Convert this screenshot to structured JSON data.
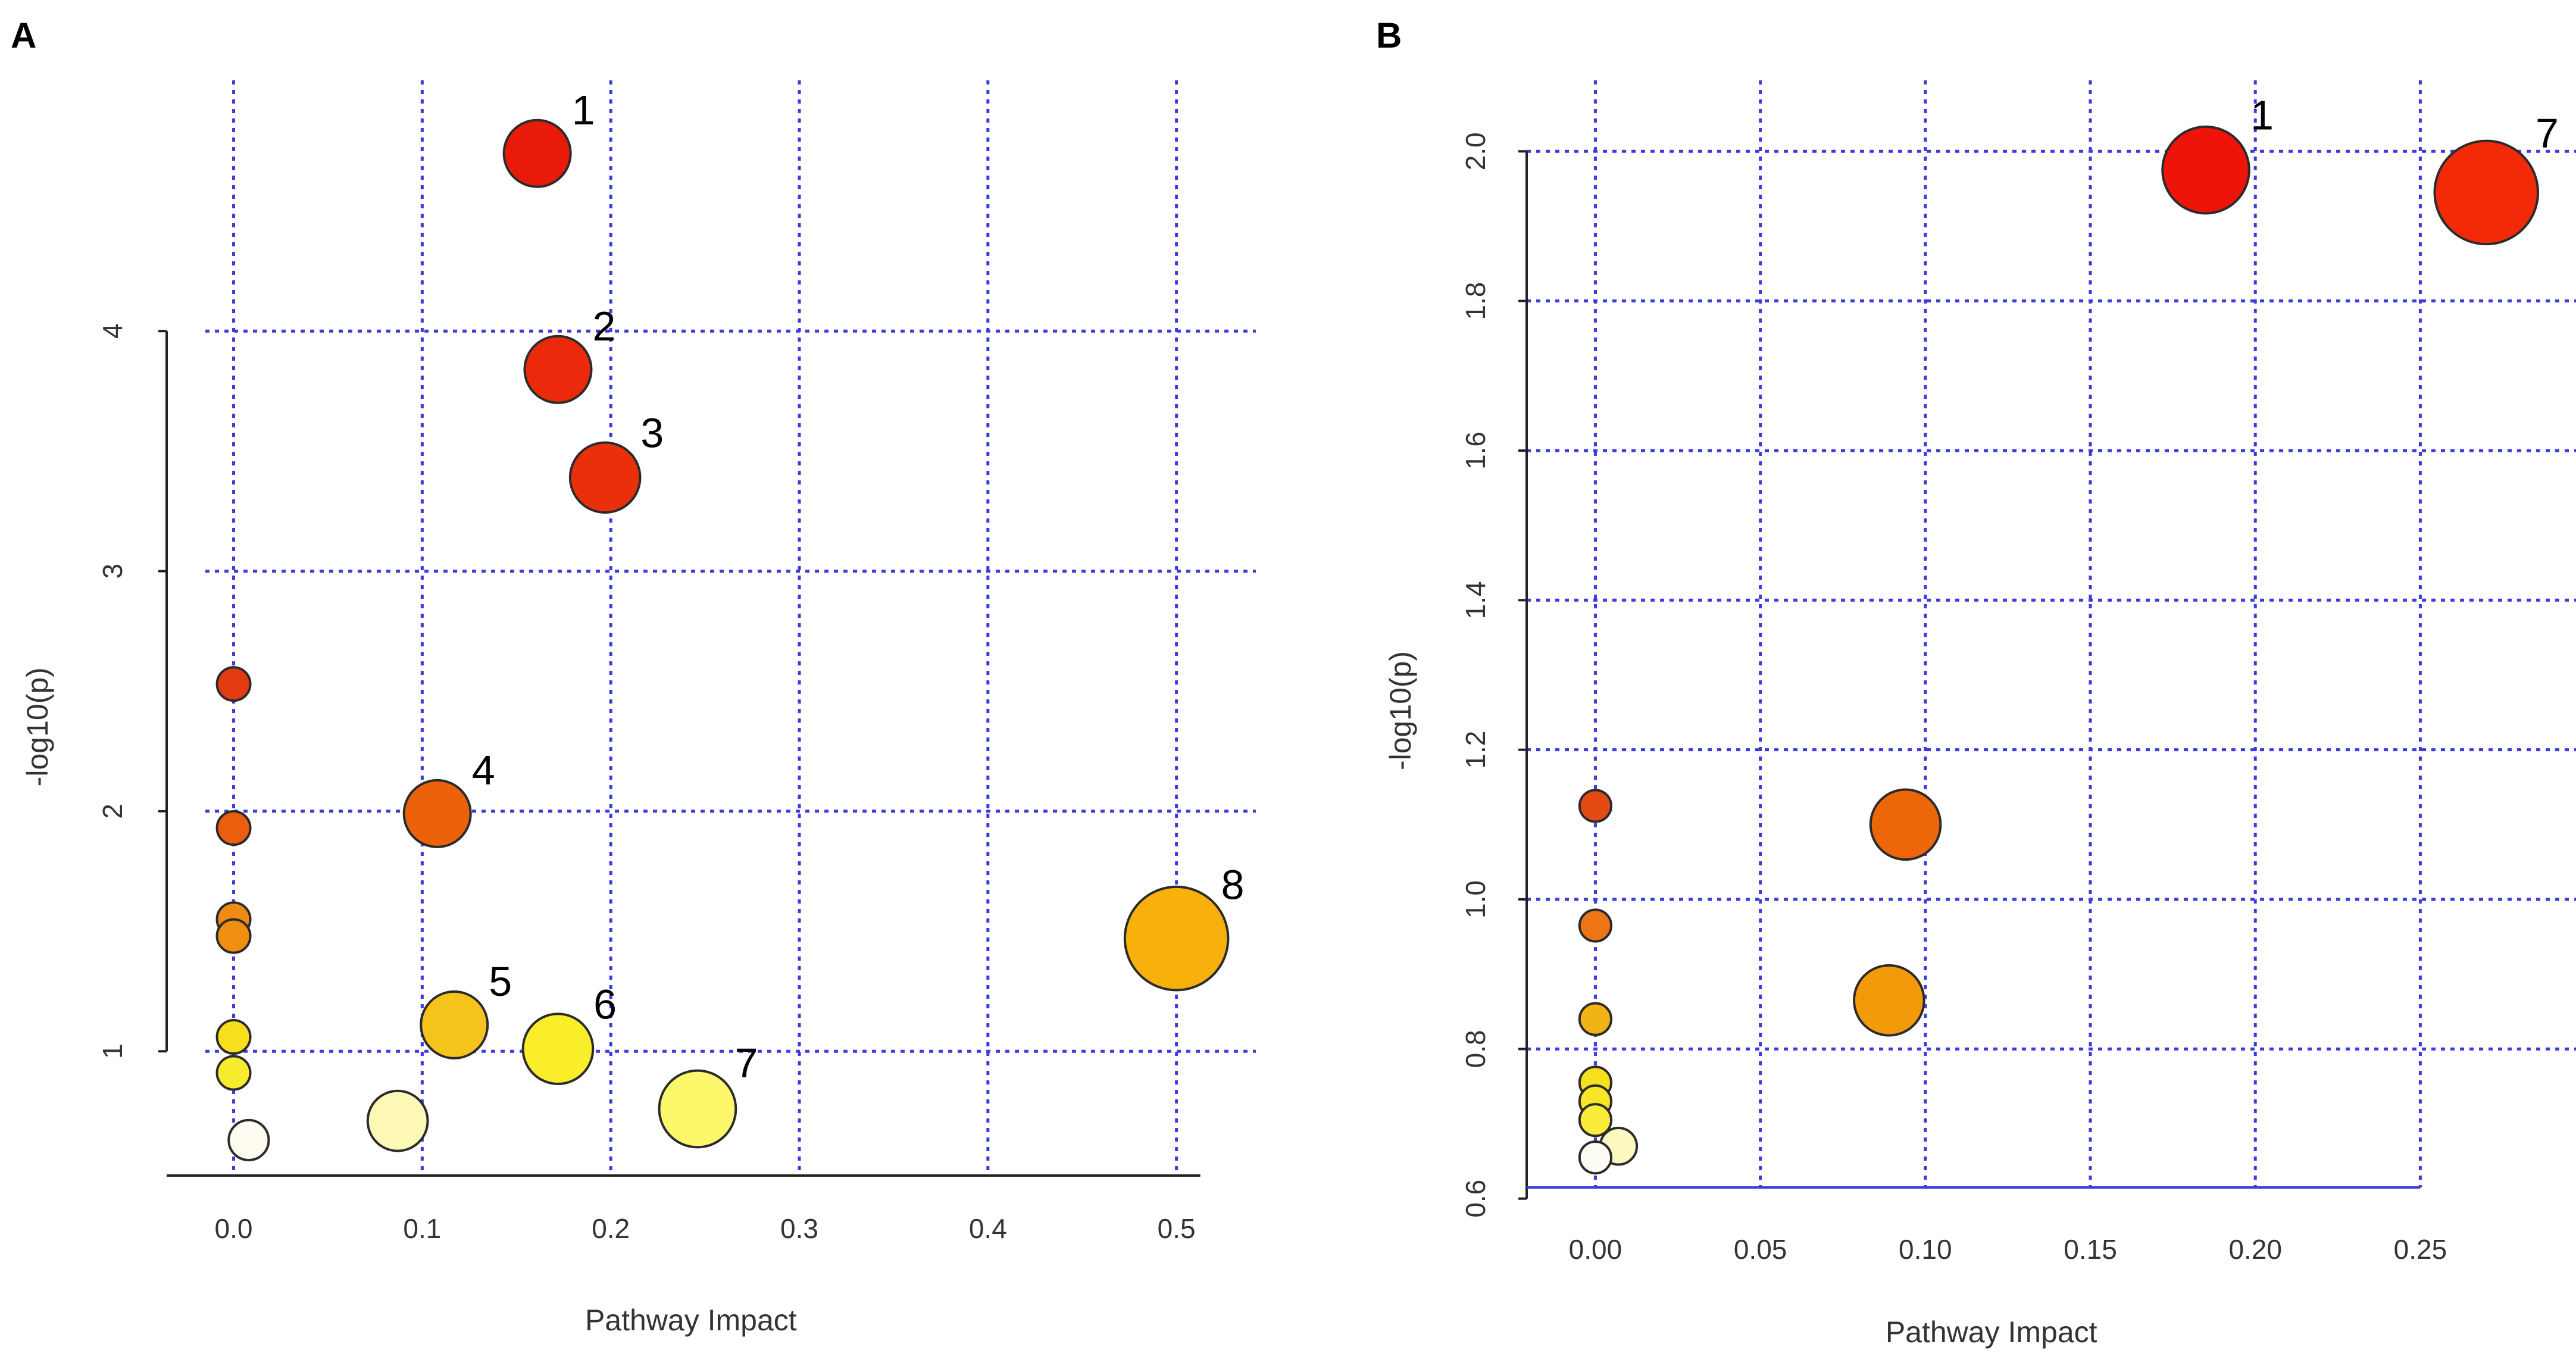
{
  "chart_data": [
    {
      "panel_label": "A",
      "type": "scatter",
      "title": "",
      "xlabel": "Pathway Impact",
      "ylabel": "-log10(p)",
      "xlim": [
        -0.015,
        0.52
      ],
      "ylim": [
        0.47,
        4.97
      ],
      "xticks": [
        0.0,
        0.1,
        0.2,
        0.3,
        0.4,
        0.5
      ],
      "xtick_labels": [
        "0.0",
        "0.1",
        "0.2",
        "0.3",
        "0.4",
        "0.5"
      ],
      "yticks": [
        1,
        2,
        3,
        4
      ],
      "ytick_labels": [
        "1",
        "2",
        "3",
        "4"
      ],
      "xgrid": [
        0.0,
        0.1,
        0.2,
        0.3,
        0.4,
        0.5
      ],
      "ygrid": [
        1,
        2,
        3,
        4
      ],
      "yaxis_range": [
        1,
        4
      ],
      "grid": true,
      "points": [
        {
          "x": 0.161,
          "y": 4.74,
          "size": 2.0,
          "color": "#e81b0b",
          "label": "1"
        },
        {
          "x": 0.172,
          "y": 3.84,
          "size": 2.0,
          "color": "#ea2a0a",
          "label": "2"
        },
        {
          "x": 0.197,
          "y": 3.39,
          "size": 2.1,
          "color": "#ea300a",
          "label": "3"
        },
        {
          "x": 0.108,
          "y": 1.99,
          "size": 2.0,
          "color": "#ec620a",
          "label": "4"
        },
        {
          "x": 0.117,
          "y": 1.11,
          "size": 2.0,
          "color": "#f6c21c",
          "label": "5"
        },
        {
          "x": 0.172,
          "y": 1.01,
          "size": 2.1,
          "color": "#faee2a",
          "label": "6"
        },
        {
          "x": 0.246,
          "y": 0.76,
          "size": 2.3,
          "color": "#fdf76c",
          "label": "7"
        },
        {
          "x": 0.5,
          "y": 1.47,
          "size": 3.1,
          "color": "#f8b00a",
          "label": "8"
        },
        {
          "x": 0.0,
          "y": 2.53,
          "size": 1.0,
          "color": "#e33a10",
          "label": ""
        },
        {
          "x": 0.0,
          "y": 1.93,
          "size": 1.0,
          "color": "#ea5e0e",
          "label": ""
        },
        {
          "x": 0.0,
          "y": 1.55,
          "size": 1.0,
          "color": "#ef8a12",
          "label": ""
        },
        {
          "x": 0.0,
          "y": 1.48,
          "size": 1.0,
          "color": "#ef8f12",
          "label": ""
        },
        {
          "x": 0.0,
          "y": 1.06,
          "size": 1.0,
          "color": "#f6df1c",
          "label": ""
        },
        {
          "x": 0.0,
          "y": 0.91,
          "size": 1.0,
          "color": "#f8ec2e",
          "label": ""
        },
        {
          "x": 0.008,
          "y": 0.63,
          "size": 1.2,
          "color": "#fefcf0",
          "label": ""
        },
        {
          "x": 0.087,
          "y": 0.71,
          "size": 1.8,
          "color": "#fdf8b6",
          "label": ""
        }
      ]
    },
    {
      "panel_label": "B",
      "type": "scatter",
      "title": "",
      "xlabel": "Pathway Impact",
      "ylabel": "-log10(p)",
      "xlim": [
        -0.01,
        0.275
      ],
      "ylim": [
        0.595,
        2.075
      ],
      "xticks": [
        0.0,
        0.05,
        0.1,
        0.15,
        0.2,
        0.25
      ],
      "xtick_labels": [
        "0.00",
        "0.05",
        "0.10",
        "0.15",
        "0.20",
        "0.25"
      ],
      "yticks": [
        0.6,
        0.8,
        1.0,
        1.2,
        1.4,
        1.6,
        1.8,
        2.0
      ],
      "ytick_labels": [
        "0.6",
        "0.8",
        "1.0",
        "1.2",
        "1.4",
        "1.6",
        "1.8",
        "2.0"
      ],
      "xgrid": [
        0.0,
        0.05,
        0.1,
        0.15,
        0.2,
        0.25
      ],
      "ygrid": [
        0.8,
        1.0,
        1.2,
        1.4,
        1.6,
        1.8,
        2.0
      ],
      "yaxis_range": [
        0.6,
        2.0
      ],
      "grid": true,
      "points": [
        {
          "x": 0.185,
          "y": 1.975,
          "size": 2.6,
          "color": "#ee1409",
          "label": "1"
        },
        {
          "x": 0.27,
          "y": 1.945,
          "size": 3.1,
          "color": "#f22a08",
          "label": "7"
        },
        {
          "x": 0.094,
          "y": 1.1,
          "size": 2.1,
          "color": "#ed6709",
          "label": ""
        },
        {
          "x": 0.089,
          "y": 0.865,
          "size": 2.1,
          "color": "#f39a0b",
          "label": ""
        },
        {
          "x": 0.0,
          "y": 1.125,
          "size": 0.95,
          "color": "#e34a14",
          "label": ""
        },
        {
          "x": 0.0,
          "y": 0.965,
          "size": 0.95,
          "color": "#ec7514",
          "label": ""
        },
        {
          "x": 0.0,
          "y": 0.84,
          "size": 0.95,
          "color": "#f2b414",
          "label": ""
        },
        {
          "x": 0.0,
          "y": 0.755,
          "size": 0.95,
          "color": "#f6e01c",
          "label": ""
        },
        {
          "x": 0.0,
          "y": 0.73,
          "size": 0.95,
          "color": "#f8e626",
          "label": ""
        },
        {
          "x": 0.0,
          "y": 0.705,
          "size": 0.95,
          "color": "#faec38",
          "label": ""
        },
        {
          "x": 0.007,
          "y": 0.67,
          "size": 1.1,
          "color": "#fdf8c0",
          "label": ""
        },
        {
          "x": 0.0,
          "y": 0.655,
          "size": 0.95,
          "color": "#fefdf4",
          "label": ""
        }
      ]
    }
  ]
}
